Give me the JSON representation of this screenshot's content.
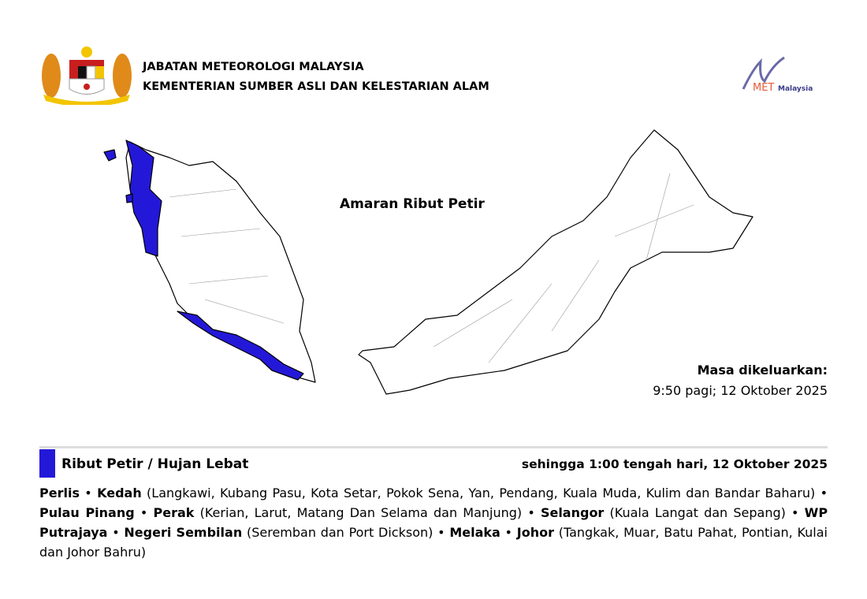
{
  "header": {
    "org_line1": "JABATAN METEOROLOGI MALAYSIA",
    "org_line2": "KEMENTERIAN SUMBER ASLI DAN KELESTARIAN ALAM",
    "met_logo_text": "METMalaysia"
  },
  "map": {
    "title": "Amaran Ribut Petir",
    "warning_color": "#2418d8"
  },
  "issued": {
    "label": "Masa dikeluarkan:",
    "value": "9:50 pagi; 12 Oktober 2025"
  },
  "warning": {
    "type": "Ribut Petir / Hujan Lebat",
    "until": "sehingga 1:00 tengah hari, 12 Oktober 2025",
    "color": "#2418d8",
    "areas": [
      {
        "state": "Perlis",
        "districts": ""
      },
      {
        "state": "Kedah",
        "districts": "(Langkawi, Kubang Pasu, Kota Setar, Pokok Sena, Yan, Pendang, Kuala Muda, Kulim dan Bandar Baharu)"
      },
      {
        "state": "Pulau Pinang",
        "districts": ""
      },
      {
        "state": "Perak",
        "districts": "(Kerian, Larut, Matang Dan Selama dan Manjung)"
      },
      {
        "state": "Selangor",
        "districts": "(Kuala Langat dan Sepang)"
      },
      {
        "state": "WP Putrajaya",
        "districts": ""
      },
      {
        "state": "Negeri Sembilan",
        "districts": "(Seremban dan Port Dickson)"
      },
      {
        "state": "Melaka",
        "districts": ""
      },
      {
        "state": "Johor",
        "districts": "(Tangkak, Muar, Batu Pahat, Pontian, Kulai dan Johor Bahru)"
      }
    ]
  }
}
